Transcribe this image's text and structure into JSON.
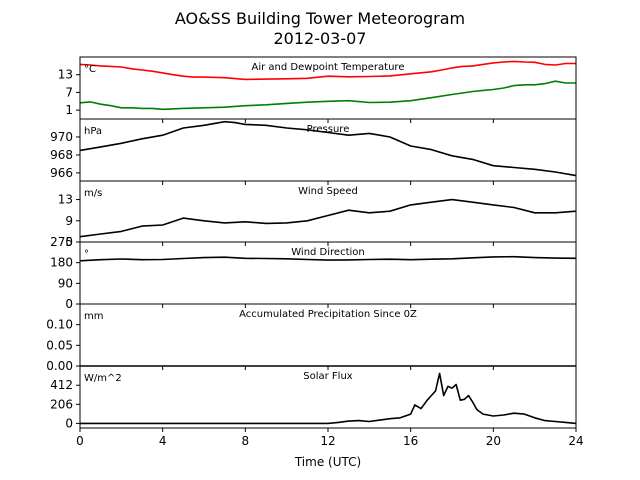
{
  "figure": {
    "title_line1": "AO&SS Building Tower Meteorogram",
    "title_line2": "2012-03-07",
    "xlabel": "Time (UTC)"
  },
  "chart_data": {
    "type": "line",
    "x_ticks": [
      0,
      4,
      8,
      12,
      16,
      20,
      24
    ],
    "xlim": [
      0,
      24
    ],
    "panels": [
      {
        "id": "temp",
        "title": "Air and Dewpoint Temperature",
        "unit": "°C",
        "ylim": [
          -2,
          19
        ],
        "yticks": [
          1,
          7,
          13
        ],
        "series": [
          {
            "name": "Air Temperature",
            "color": "#ff0000",
            "x": [
              0,
              0.5,
              1,
              1.5,
              2,
              2.5,
              3,
              3.5,
              4,
              4.5,
              5,
              5.5,
              6,
              7,
              8,
              9,
              10,
              11,
              12,
              13,
              14,
              15,
              16,
              17,
              17.5,
              18,
              18.5,
              19,
              19.5,
              20,
              20.5,
              21,
              21.5,
              22,
              22.5,
              23,
              23.5,
              24
            ],
            "y": [
              16.5,
              16.3,
              16.0,
              15.8,
              15.6,
              15.0,
              14.6,
              14.2,
              13.6,
              13.0,
              12.5,
              12.2,
              12.2,
              12.0,
              11.4,
              11.5,
              11.6,
              11.8,
              12.5,
              12.3,
              12.4,
              12.6,
              13.3,
              14.0,
              14.6,
              15.3,
              15.8,
              16.0,
              16.5,
              17.0,
              17.3,
              17.5,
              17.3,
              17.2,
              16.5,
              16.3,
              16.8,
              16.8
            ]
          },
          {
            "name": "Dewpoint Temperature",
            "color": "#008000",
            "x": [
              0,
              0.5,
              1,
              1.5,
              2,
              2.5,
              3,
              3.5,
              4,
              5,
              6,
              7,
              8,
              9,
              10,
              11,
              12,
              13,
              14,
              15,
              16,
              17,
              18,
              19,
              19.5,
              20,
              20.5,
              21,
              21.5,
              22,
              22.5,
              23,
              23.5,
              24
            ],
            "y": [
              3.5,
              3.8,
              3.0,
              2.5,
              1.8,
              1.8,
              1.6,
              1.6,
              1.3,
              1.6,
              1.8,
              2.0,
              2.5,
              2.8,
              3.3,
              3.7,
              4.0,
              4.2,
              3.6,
              3.7,
              4.2,
              5.2,
              6.3,
              7.3,
              7.7,
              8.0,
              8.5,
              9.3,
              9.6,
              9.6,
              10.0,
              10.8,
              10.2,
              10.2
            ]
          }
        ]
      },
      {
        "id": "pressure",
        "title": "Pressure",
        "unit": "hPa",
        "ylim": [
          965.1,
          972.0
        ],
        "yticks": [
          966,
          968,
          970
        ],
        "series": [
          {
            "name": "Pressure",
            "color": "#000000",
            "x": [
              0,
              1,
              2,
              3,
              4,
              5,
              6,
              7,
              7.5,
              8,
              9,
              10,
              11,
              12,
              13,
              14,
              15,
              16,
              17,
              18,
              19,
              20,
              21,
              22,
              23,
              24
            ],
            "y": [
              968.5,
              968.9,
              969.3,
              969.8,
              970.2,
              971.0,
              971.3,
              971.7,
              971.6,
              971.4,
              971.3,
              971.0,
              970.8,
              970.5,
              970.2,
              970.4,
              970.0,
              969.0,
              968.6,
              967.9,
              967.5,
              966.8,
              966.6,
              966.4,
              966.1,
              965.7
            ]
          }
        ]
      },
      {
        "id": "wind_speed",
        "title": "Wind Speed",
        "unit": "m/s",
        "ylim": [
          5,
          16.5
        ],
        "yticks": [
          5,
          9,
          13
        ],
        "series": [
          {
            "name": "Wind Speed",
            "color": "#000000",
            "x": [
              0,
              1,
              2,
              3,
              4,
              5,
              6,
              7,
              8,
              9,
              10,
              11,
              12,
              13,
              14,
              15,
              16,
              17,
              18,
              19,
              20,
              21,
              22,
              23,
              24
            ],
            "y": [
              6.0,
              6.5,
              7.0,
              8.0,
              8.2,
              9.5,
              9.0,
              8.6,
              8.8,
              8.5,
              8.6,
              9.0,
              10.0,
              11.0,
              10.5,
              10.8,
              12.0,
              12.5,
              13.0,
              12.5,
              12.0,
              11.5,
              10.5,
              10.5,
              10.8
            ]
          }
        ]
      },
      {
        "id": "wind_dir",
        "title": "Wind Direction",
        "unit": "°",
        "ylim": [
          0,
          270
        ],
        "yticks": [
          0,
          90,
          180,
          270
        ],
        "series": [
          {
            "name": "Wind Direction",
            "color": "#000000",
            "x": [
              0,
              1,
              2,
              3,
              4,
              5,
              6,
              7,
              8,
              9,
              10,
              11,
              12,
              13,
              14,
              15,
              16,
              17,
              18,
              19,
              20,
              21,
              22,
              23,
              24
            ],
            "y": [
              188,
              193,
              196,
              193,
              194,
              198,
              202,
              204,
              199,
              198,
              197,
              194,
              191,
              192,
              194,
              195,
              193,
              195,
              197,
              201,
              205,
              206,
              202,
              200,
              199
            ]
          }
        ]
      },
      {
        "id": "precip",
        "title": "Accumulated Precipitation Since 0Z",
        "unit": "mm",
        "ylim": [
          0,
          0.15
        ],
        "yticks": [
          0.0,
          0.05,
          0.1
        ],
        "ytick_labels": [
          "0.00",
          "0.05",
          "0.10"
        ],
        "series": [
          {
            "name": "Accumulated Precipitation",
            "color": "#000000",
            "x": [
              0,
              24
            ],
            "y": [
              0,
              0
            ]
          }
        ]
      },
      {
        "id": "solar",
        "title": "Solar Flux",
        "unit": "W/m^2",
        "ylim": [
          -50,
          620
        ],
        "yticks": [
          0,
          206,
          412
        ],
        "series": [
          {
            "name": "Solar Flux",
            "color": "#000000",
            "x": [
              0,
              12,
              12.5,
              13,
              13.5,
              14,
              14.5,
              15,
              15.5,
              16,
              16.2,
              16.5,
              16.8,
              17,
              17.2,
              17.4,
              17.6,
              17.8,
              18,
              18.2,
              18.4,
              18.6,
              18.8,
              19,
              19.2,
              19.5,
              20,
              20.5,
              21,
              21.5,
              22,
              22.5,
              23,
              23.5,
              24
            ],
            "y": [
              0,
              0,
              10,
              25,
              30,
              20,
              35,
              50,
              60,
              100,
              200,
              160,
              250,
              300,
              350,
              540,
              300,
              400,
              380,
              420,
              250,
              260,
              300,
              230,
              150,
              100,
              80,
              90,
              110,
              100,
              60,
              30,
              20,
              10,
              0
            ]
          }
        ]
      }
    ]
  }
}
